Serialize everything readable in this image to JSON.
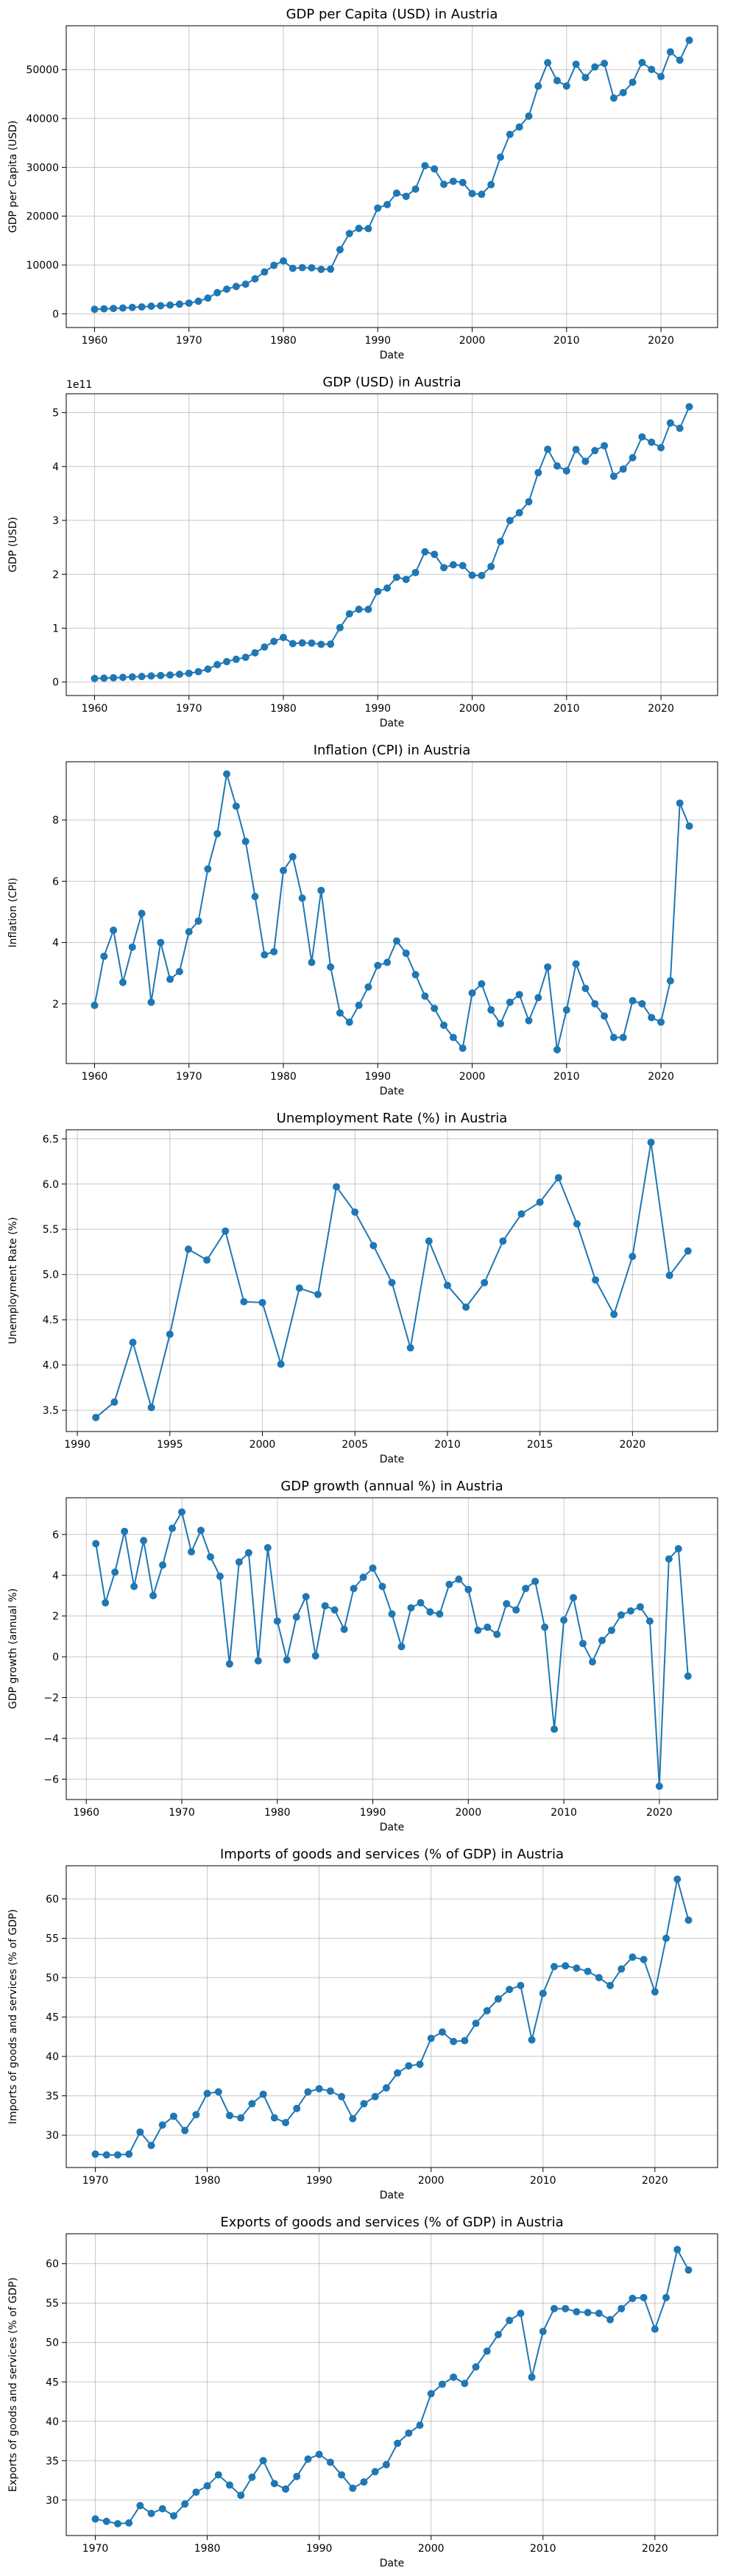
{
  "chart_data": [
    {
      "type": "line",
      "title": "GDP per Capita (USD) in Austria",
      "xlabel": "Date",
      "ylabel": "GDP per Capita (USD)",
      "xlim": [
        1957,
        2026
      ],
      "ylim": [
        -2800,
        59000
      ],
      "xticks": [
        1960,
        1970,
        1980,
        1990,
        2000,
        2010,
        2020
      ],
      "yticks": [
        0,
        10000,
        20000,
        30000,
        40000,
        50000
      ],
      "ytick_labels": [
        "0",
        "10000",
        "20000",
        "30000",
        "40000",
        "50000"
      ],
      "offset_label": "",
      "grid": true,
      "x": [
        1960,
        1961,
        1962,
        1963,
        1964,
        1965,
        1966,
        1967,
        1968,
        1969,
        1970,
        1971,
        1972,
        1973,
        1974,
        1975,
        1976,
        1977,
        1978,
        1979,
        1980,
        1981,
        1982,
        1983,
        1984,
        1985,
        1986,
        1987,
        1988,
        1989,
        1990,
        1991,
        1992,
        1993,
        1994,
        1995,
        1996,
        1997,
        1998,
        1999,
        2000,
        2001,
        2002,
        2003,
        2004,
        2005,
        2006,
        2007,
        2008,
        2009,
        2010,
        2011,
        2012,
        2013,
        2014,
        2015,
        2016,
        2017,
        2018,
        2019,
        2020,
        2021,
        2022,
        2023
      ],
      "y": [
        935,
        1029,
        1106,
        1197,
        1318,
        1425,
        1564,
        1667,
        1791,
        1980,
        2200,
        2592,
        3233,
        4336,
        5060,
        5607,
        6076,
        7174,
        8575,
        9930,
        10842,
        9322,
        9466,
        9436,
        9117,
        9160,
        13146,
        16456,
        17505,
        17453,
        21665,
        22376,
        24722,
        24062,
        25559,
        30349,
        29678,
        26532,
        27147,
        26903,
        24628,
        24474,
        26464,
        32095,
        36756,
        38262,
        40506,
        46643,
        51446,
        47762,
        46666,
        51123,
        48396,
        50566,
        51297,
        44196,
        45308,
        47429,
        51466,
        50068,
        48587,
        53640,
        51954,
        56033
      ]
    },
    {
      "type": "line",
      "title": "GDP (USD) in Austria",
      "xlabel": "Date",
      "ylabel": "GDP (USD)",
      "xlim": [
        1957,
        2026
      ],
      "ylim": [
        -0.25,
        5.35
      ],
      "xticks": [
        1960,
        1970,
        1980,
        1990,
        2000,
        2010,
        2020
      ],
      "yticks": [
        0,
        1,
        2,
        3,
        4,
        5
      ],
      "ytick_labels": [
        "0",
        "1",
        "2",
        "3",
        "4",
        "5"
      ],
      "offset_label": "1e11",
      "grid": true,
      "x": [
        1960,
        1961,
        1962,
        1963,
        1964,
        1965,
        1966,
        1967,
        1968,
        1969,
        1970,
        1971,
        1972,
        1973,
        1974,
        1975,
        1976,
        1977,
        1978,
        1979,
        1980,
        1981,
        1982,
        1983,
        1984,
        1985,
        1986,
        1987,
        1988,
        1989,
        1990,
        1991,
        1992,
        1993,
        1994,
        1995,
        1996,
        1997,
        1998,
        1999,
        2000,
        2001,
        2002,
        2003,
        2004,
        2005,
        2006,
        2007,
        2008,
        2009,
        2010,
        2011,
        2012,
        2013,
        2014,
        2015,
        2016,
        2017,
        2018,
        2019,
        2020,
        2021,
        2022,
        2023
      ],
      "y": [
        0.066,
        0.073,
        0.079,
        0.086,
        0.095,
        0.103,
        0.113,
        0.121,
        0.131,
        0.145,
        0.162,
        0.192,
        0.24,
        0.323,
        0.379,
        0.422,
        0.459,
        0.543,
        0.65,
        0.754,
        0.827,
        0.713,
        0.726,
        0.724,
        0.7,
        0.704,
        1.01,
        1.266,
        1.35,
        1.349,
        1.681,
        1.745,
        1.944,
        1.905,
        2.032,
        2.417,
        2.37,
        2.124,
        2.176,
        2.161,
        1.982,
        1.976,
        2.144,
        2.61,
        2.997,
        3.142,
        3.346,
        3.886,
        4.32,
        4.01,
        3.92,
        4.316,
        4.096,
        4.295,
        4.386,
        3.819,
        3.953,
        4.163,
        4.55,
        4.45,
        4.35,
        4.808,
        4.71,
        5.11
      ]
    },
    {
      "type": "line",
      "title": "Inflation (CPI) in Austria",
      "xlabel": "Date",
      "ylabel": "Inflation (CPI)",
      "xlim": [
        1957,
        2026
      ],
      "ylim": [
        0.05,
        9.9
      ],
      "xticks": [
        1960,
        1970,
        1980,
        1990,
        2000,
        2010,
        2020
      ],
      "yticks": [
        2,
        4,
        6,
        8
      ],
      "ytick_labels": [
        "2",
        "4",
        "6",
        "8"
      ],
      "offset_label": "",
      "grid": true,
      "x": [
        1960,
        1961,
        1962,
        1963,
        1964,
        1965,
        1966,
        1967,
        1968,
        1969,
        1970,
        1971,
        1972,
        1973,
        1974,
        1975,
        1976,
        1977,
        1978,
        1979,
        1980,
        1981,
        1982,
        1983,
        1984,
        1985,
        1986,
        1987,
        1988,
        1989,
        1990,
        1991,
        1992,
        1993,
        1994,
        1995,
        1996,
        1997,
        1998,
        1999,
        2000,
        2001,
        2002,
        2003,
        2004,
        2005,
        2006,
        2007,
        2008,
        2009,
        2010,
        2011,
        2012,
        2013,
        2014,
        2015,
        2016,
        2017,
        2018,
        2019,
        2020,
        2021,
        2022,
        2023
      ],
      "y": [
        1.95,
        3.55,
        4.4,
        2.7,
        3.85,
        4.95,
        2.05,
        4.0,
        2.8,
        3.05,
        4.35,
        4.7,
        6.4,
        7.55,
        9.5,
        8.45,
        7.3,
        5.5,
        3.6,
        3.7,
        6.35,
        6.8,
        5.45,
        3.35,
        5.7,
        3.2,
        1.7,
        1.4,
        1.95,
        2.55,
        3.25,
        3.35,
        4.05,
        3.65,
        2.95,
        2.25,
        1.85,
        1.3,
        0.9,
        0.55,
        2.35,
        2.65,
        1.8,
        1.35,
        2.05,
        2.3,
        1.45,
        2.2,
        3.2,
        0.5,
        1.8,
        3.3,
        2.5,
        2.0,
        1.6,
        0.9,
        0.9,
        2.1,
        2.0,
        1.55,
        1.4,
        2.75,
        8.55,
        7.8
      ]
    },
    {
      "type": "line",
      "title": "Unemployment Rate (%) in Austria",
      "xlabel": "Date",
      "ylabel": "Unemployment Rate (%)",
      "xlim": [
        1989.4,
        2024.6
      ],
      "ylim": [
        3.265,
        6.6
      ],
      "xticks": [
        1990,
        1995,
        2000,
        2005,
        2010,
        2015,
        2020
      ],
      "yticks": [
        3.5,
        4.0,
        4.5,
        5.0,
        5.5,
        6.0,
        6.5
      ],
      "ytick_labels": [
        "3.5",
        "4.0",
        "4.5",
        "5.0",
        "5.5",
        "6.0",
        "6.5"
      ],
      "offset_label": "",
      "grid": true,
      "x": [
        1991,
        1992,
        1993,
        1994,
        1995,
        1996,
        1997,
        1998,
        1999,
        2000,
        2001,
        2002,
        2003,
        2004,
        2005,
        2006,
        2007,
        2008,
        2009,
        2010,
        2011,
        2012,
        2013,
        2014,
        2015,
        2016,
        2017,
        2018,
        2019,
        2020,
        2021,
        2022,
        2023
      ],
      "y": [
        3.42,
        3.59,
        4.25,
        3.53,
        4.34,
        5.28,
        5.16,
        5.48,
        4.7,
        4.69,
        4.01,
        4.85,
        4.78,
        5.97,
        5.69,
        5.32,
        4.91,
        4.19,
        5.37,
        4.88,
        4.64,
        4.91,
        5.37,
        5.67,
        5.8,
        6.07,
        5.56,
        4.94,
        4.56,
        5.2,
        6.46,
        4.99,
        5.26
      ]
    },
    {
      "type": "line",
      "title": "GDP growth (annual %) in Austria",
      "xlabel": "Date",
      "ylabel": "GDP growth (annual %)",
      "xlim": [
        1957.9,
        2026.1
      ],
      "ylim": [
        -7.0,
        7.8
      ],
      "xticks": [
        1960,
        1970,
        1980,
        1990,
        2000,
        2010,
        2020
      ],
      "yticks": [
        -6,
        -4,
        -2,
        0,
        2,
        4,
        6
      ],
      "ytick_labels": [
        "−6",
        "−4",
        "−2",
        "0",
        "2",
        "4",
        "6"
      ],
      "offset_label": "",
      "grid": true,
      "x": [
        1961,
        1962,
        1963,
        1964,
        1965,
        1966,
        1967,
        1968,
        1969,
        1970,
        1971,
        1972,
        1973,
        1974,
        1975,
        1976,
        1977,
        1978,
        1979,
        1980,
        1981,
        1982,
        1983,
        1984,
        1985,
        1986,
        1987,
        1988,
        1989,
        1990,
        1991,
        1992,
        1993,
        1994,
        1995,
        1996,
        1997,
        1998,
        1999,
        2000,
        2001,
        2002,
        2003,
        2004,
        2005,
        2006,
        2007,
        2008,
        2009,
        2010,
        2011,
        2012,
        2013,
        2014,
        2015,
        2016,
        2017,
        2018,
        2019,
        2020,
        2021,
        2022,
        2023
      ],
      "y": [
        5.55,
        2.65,
        4.15,
        6.15,
        3.45,
        5.7,
        3.0,
        4.5,
        6.3,
        7.1,
        5.15,
        6.2,
        4.9,
        3.95,
        -0.35,
        4.65,
        5.1,
        -0.2,
        5.35,
        1.75,
        -0.15,
        1.95,
        2.95,
        0.05,
        2.5,
        2.3,
        1.35,
        3.35,
        3.9,
        4.35,
        3.45,
        2.1,
        0.5,
        2.4,
        2.65,
        2.2,
        2.1,
        3.55,
        3.8,
        3.3,
        1.3,
        1.45,
        1.1,
        2.6,
        2.3,
        3.35,
        3.7,
        1.45,
        -3.55,
        1.8,
        2.9,
        0.65,
        -0.25,
        0.8,
        1.3,
        2.05,
        2.25,
        2.45,
        1.75,
        -6.35,
        4.8,
        5.3,
        -0.95
      ]
    },
    {
      "type": "line",
      "title": "Imports of goods and services (% of GDP) in Austria",
      "xlabel": "Date",
      "ylabel": "Imports of goods and services (% of GDP)",
      "xlim": [
        1967.4,
        2025.6
      ],
      "ylim": [
        25.9,
        64.2
      ],
      "xticks": [
        1970,
        1980,
        1990,
        2000,
        2010,
        2020
      ],
      "yticks": [
        30,
        35,
        40,
        45,
        50,
        55,
        60
      ],
      "ytick_labels": [
        "30",
        "35",
        "40",
        "45",
        "50",
        "55",
        "60"
      ],
      "offset_label": "",
      "grid": true,
      "x": [
        1970,
        1971,
        1972,
        1973,
        1974,
        1975,
        1976,
        1977,
        1978,
        1979,
        1980,
        1981,
        1982,
        1983,
        1984,
        1985,
        1986,
        1987,
        1988,
        1989,
        1990,
        1991,
        1992,
        1993,
        1994,
        1995,
        1996,
        1997,
        1998,
        1999,
        2000,
        2001,
        2002,
        2003,
        2004,
        2005,
        2006,
        2007,
        2008,
        2009,
        2010,
        2011,
        2012,
        2013,
        2014,
        2015,
        2016,
        2017,
        2018,
        2019,
        2020,
        2021,
        2022,
        2023
      ],
      "y": [
        27.6,
        27.5,
        27.5,
        27.6,
        30.4,
        28.7,
        31.3,
        32.4,
        30.6,
        32.6,
        35.3,
        35.5,
        32.5,
        32.2,
        34.0,
        35.2,
        32.2,
        31.6,
        33.4,
        35.5,
        35.9,
        35.6,
        34.9,
        32.1,
        34.0,
        34.9,
        36.0,
        37.9,
        38.8,
        39.0,
        42.3,
        43.1,
        41.9,
        42.0,
        44.2,
        45.8,
        47.3,
        48.5,
        49.0,
        42.1,
        48.0,
        51.4,
        51.5,
        51.2,
        50.8,
        50.0,
        49.0,
        51.1,
        52.6,
        52.3,
        48.2,
        55.0,
        62.5,
        57.3
      ]
    },
    {
      "type": "line",
      "title": "Exports of goods and services (% of GDP) in Austria",
      "xlabel": "Date",
      "ylabel": "Exports of goods and services (% of GDP)",
      "xlim": [
        1967.4,
        2025.6
      ],
      "ylim": [
        25.5,
        63.8
      ],
      "xticks": [
        1970,
        1980,
        1990,
        2000,
        2010,
        2020
      ],
      "yticks": [
        30,
        35,
        40,
        45,
        50,
        55,
        60
      ],
      "ytick_labels": [
        "30",
        "35",
        "40",
        "45",
        "50",
        "55",
        "60"
      ],
      "offset_label": "",
      "grid": true,
      "x": [
        1970,
        1971,
        1972,
        1973,
        1974,
        1975,
        1976,
        1977,
        1978,
        1979,
        1980,
        1981,
        1982,
        1983,
        1984,
        1985,
        1986,
        1987,
        1988,
        1989,
        1990,
        1991,
        1992,
        1993,
        1994,
        1995,
        1996,
        1997,
        1998,
        1999,
        2000,
        2001,
        2002,
        2003,
        2004,
        2005,
        2006,
        2007,
        2008,
        2009,
        2010,
        2011,
        2012,
        2013,
        2014,
        2015,
        2016,
        2017,
        2018,
        2019,
        2020,
        2021,
        2022,
        2023
      ],
      "y": [
        27.6,
        27.3,
        27.0,
        27.1,
        29.3,
        28.3,
        28.9,
        28.0,
        29.5,
        31.0,
        31.8,
        33.2,
        31.9,
        30.6,
        32.9,
        35.0,
        32.1,
        31.4,
        33.0,
        35.2,
        35.8,
        34.8,
        33.2,
        31.5,
        32.3,
        33.6,
        34.5,
        37.2,
        38.5,
        39.5,
        43.5,
        44.7,
        45.6,
        44.8,
        46.9,
        48.9,
        51.0,
        52.8,
        53.7,
        45.6,
        51.4,
        54.3,
        54.3,
        53.9,
        53.8,
        53.7,
        52.9,
        54.3,
        55.6,
        55.7,
        51.7,
        55.7,
        61.8,
        59.2
      ]
    }
  ]
}
